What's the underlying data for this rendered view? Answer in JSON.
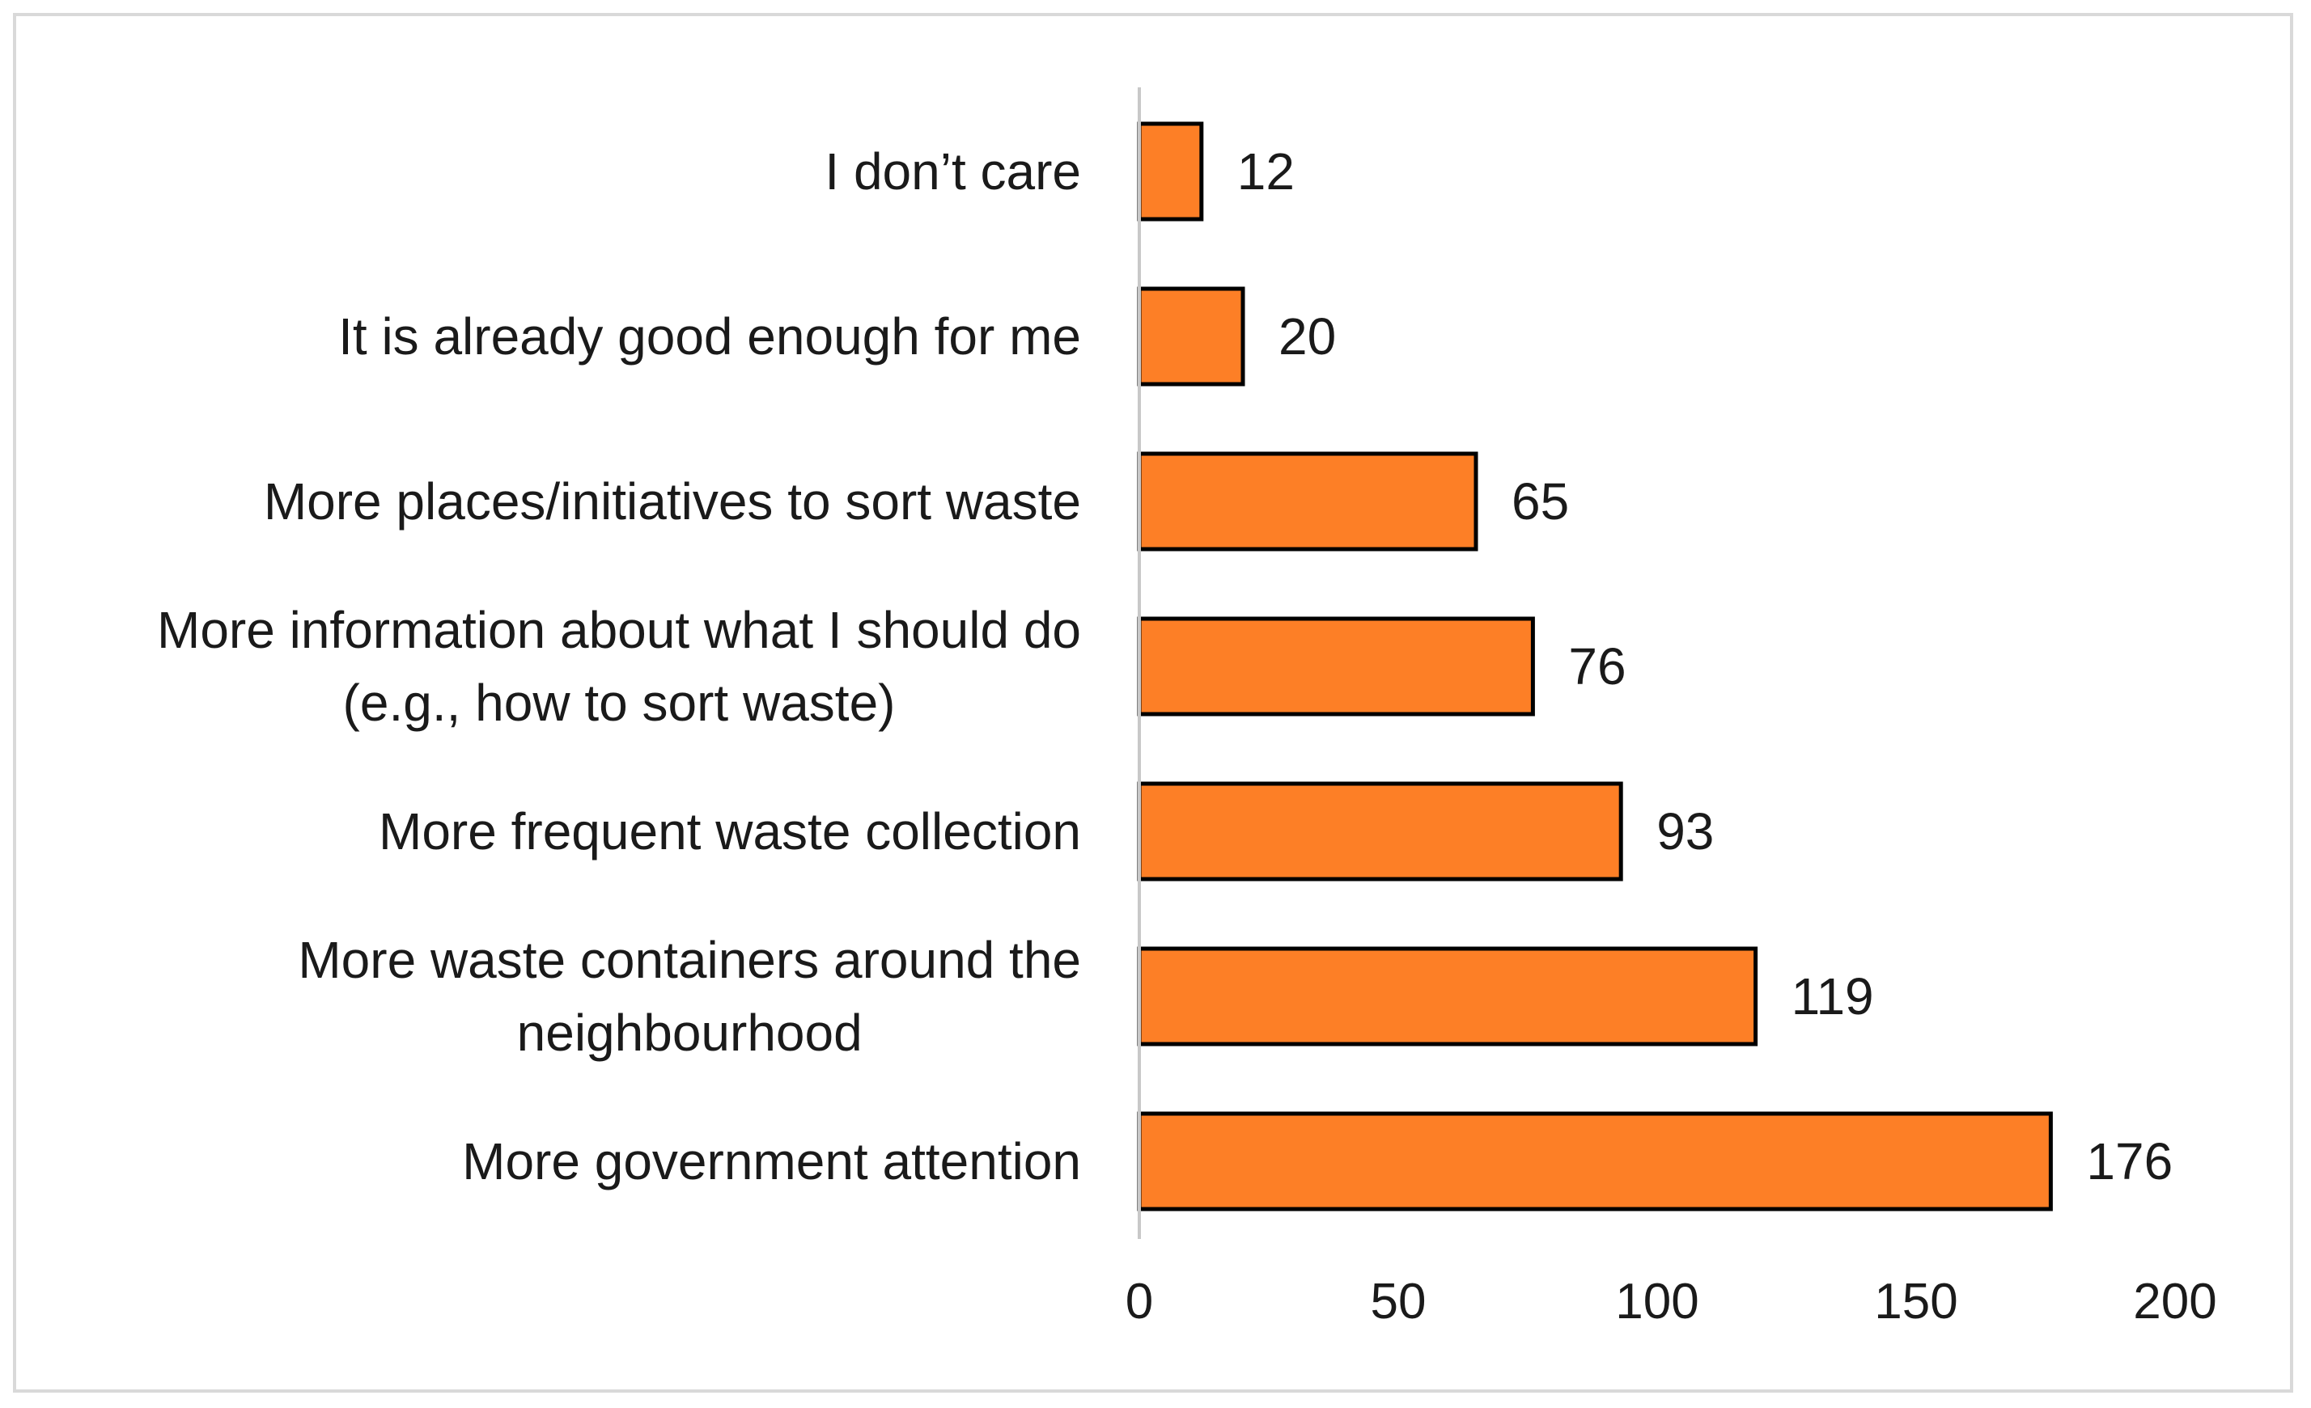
{
  "chart_data": {
    "type": "bar",
    "orientation": "horizontal",
    "categories": [
      [
        "I don’t care"
      ],
      [
        "It is already good enough for me"
      ],
      [
        "More places/initiatives to sort waste"
      ],
      [
        "More information about what I should do",
        "(e.g., how to sort waste)"
      ],
      [
        "More frequent waste collection"
      ],
      [
        "More waste containers around the",
        "neighbourhood"
      ],
      [
        "More government attention"
      ]
    ],
    "values": [
      12,
      20,
      65,
      76,
      93,
      119,
      176
    ],
    "value_labels": [
      "12",
      "20",
      "65",
      "76",
      "93",
      "119",
      "176"
    ],
    "xlim": [
      0,
      200
    ],
    "xticks": [
      0,
      50,
      100,
      150,
      200
    ],
    "xtick_labels": [
      "0",
      "50",
      "100",
      "150",
      "200"
    ],
    "bar_color": "#fd7f26",
    "bar_edge_color": "#000000",
    "axis_color": "#c8c8c8",
    "grid": false,
    "legend": "none"
  }
}
